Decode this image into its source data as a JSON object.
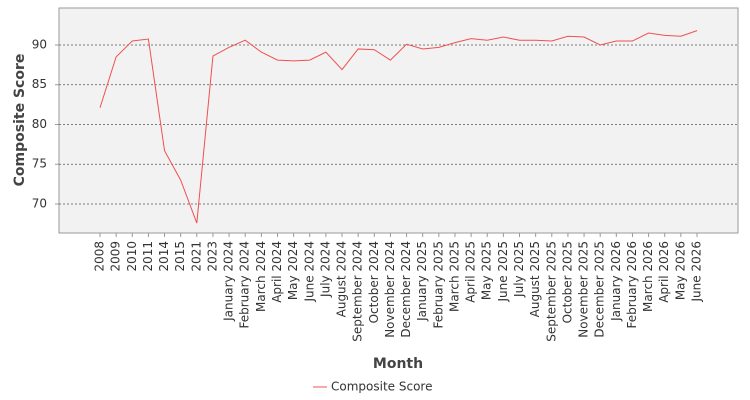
{
  "chart_data": {
    "type": "line",
    "x_label": "Month",
    "y_label": "Composite Score",
    "categories": [
      "2008",
      "2009",
      "2010",
      "2011",
      "2014",
      "2015",
      "2021",
      "2023",
      "January 2024",
      "February 2024",
      "March 2024",
      "April 2024",
      "May 2024",
      "June 2024",
      "July 2024",
      "August 2024",
      "September 2024",
      "October 2024",
      "November 2024",
      "December 2024",
      "January 2025",
      "February 2025",
      "March 2025",
      "April 2025",
      "May 2025",
      "June 2025",
      "July 2025",
      "August 2025",
      "September 2025",
      "October 2025",
      "November 2025",
      "December 2025",
      "January 2026",
      "February 2026",
      "March 2026",
      "April 2026",
      "May 2026",
      "June 2026"
    ],
    "series": [
      {
        "name": "Composite Score",
        "color": "#f05050",
        "values": [
          82.1,
          88.5,
          90.5,
          90.75,
          76.7,
          73.0,
          67.6,
          88.6,
          89.7,
          90.6,
          89.1,
          88.1,
          88.0,
          88.1,
          89.1,
          86.9,
          89.5,
          89.4,
          88.1,
          90.1,
          89.5,
          89.7,
          90.3,
          90.8,
          90.6,
          91.0,
          90.6,
          90.6,
          90.5,
          91.1,
          91.0,
          90.0,
          90.5,
          90.5,
          91.5,
          91.2,
          91.1,
          91.8
        ]
      }
    ],
    "ylim": [
      66.35,
      94.65
    ],
    "yticks": [
      70,
      75,
      80,
      85,
      90
    ],
    "grid": true,
    "legend": "bottom"
  }
}
